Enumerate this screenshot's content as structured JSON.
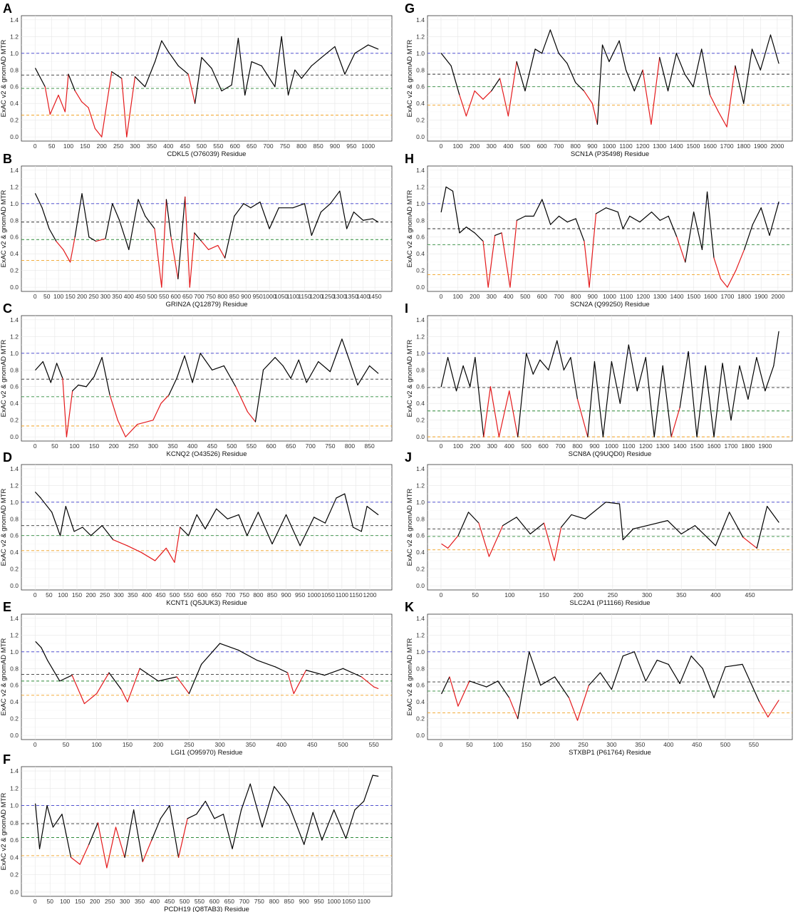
{
  "figure": {
    "ylabel": "ExAC v2 & gnomAD MTR",
    "yticks": [
      0.0,
      0.2,
      0.4,
      0.6,
      0.8,
      1.0,
      1.2,
      1.4
    ],
    "colors": {
      "line_tolerant": "#000000",
      "line_intolerant": "#e41a1c",
      "gray_series": "#b5b5b5",
      "ref_blue": "#3b3bcc",
      "ref_black": "#333333",
      "ref_green": "#2e8b3a",
      "ref_orange": "#f0a020"
    }
  },
  "chart_data": [
    {
      "panel": "A",
      "type": "line",
      "xlabel": "CDKL5 (O76039) Residue",
      "xmax": 1030,
      "xtick_step": 50,
      "ylim": [
        0,
        1.4
      ],
      "ref_lines": {
        "blue": 1.0,
        "black": 0.74,
        "green": 0.58,
        "orange": 0.26
      },
      "series": [
        {
          "x": [
            1,
            30,
            45,
            70,
            90,
            100,
            120,
            140,
            160,
            180,
            200,
            230,
            260,
            275,
            300,
            330,
            360,
            380,
            400,
            430,
            460,
            480,
            500,
            530,
            560,
            590,
            610,
            630,
            650,
            680,
            720,
            740,
            760,
            780,
            800,
            830,
            860,
            900,
            930,
            960,
            1000,
            1030
          ],
          "y": [
            0.82,
            0.6,
            0.27,
            0.5,
            0.3,
            0.75,
            0.55,
            0.42,
            0.35,
            0.1,
            0.0,
            0.78,
            0.7,
            0.0,
            0.72,
            0.6,
            0.9,
            1.15,
            1.02,
            0.85,
            0.75,
            0.4,
            0.95,
            0.82,
            0.55,
            0.62,
            1.18,
            0.5,
            0.9,
            0.85,
            0.6,
            1.2,
            0.5,
            0.8,
            0.7,
            0.85,
            0.95,
            1.08,
            0.75,
            1.0,
            1.1,
            1.05
          ]
        }
      ]
    },
    {
      "panel": "B",
      "type": "line",
      "xlabel": "GRIN2A (Q12879) Residue",
      "xmax": 1464,
      "xtick_step": 50,
      "ylim": [
        0,
        1.4
      ],
      "ref_lines": {
        "blue": 1.0,
        "black": 0.78,
        "green": 0.57,
        "orange": 0.32
      },
      "series": [
        {
          "x": [
            1,
            30,
            60,
            90,
            120,
            150,
            170,
            200,
            230,
            260,
            300,
            330,
            360,
            400,
            440,
            470,
            510,
            540,
            560,
            580,
            610,
            640,
            660,
            680,
            710,
            740,
            780,
            810,
            850,
            890,
            920,
            960,
            1000,
            1040,
            1100,
            1150,
            1180,
            1220,
            1260,
            1300,
            1330,
            1360,
            1400,
            1440,
            1464
          ],
          "y": [
            1.12,
            0.95,
            0.7,
            0.55,
            0.45,
            0.3,
            0.6,
            1.12,
            0.6,
            0.55,
            0.58,
            1.0,
            0.8,
            0.45,
            1.05,
            0.85,
            0.7,
            0.0,
            1.05,
            0.6,
            0.1,
            1.08,
            0.0,
            0.65,
            0.55,
            0.45,
            0.5,
            0.35,
            0.85,
            1.0,
            0.95,
            1.02,
            0.7,
            0.95,
            0.95,
            1.0,
            0.62,
            0.9,
            1.0,
            1.15,
            0.7,
            0.9,
            0.8,
            0.82,
            0.78
          ]
        }
      ]
    },
    {
      "panel": "C",
      "type": "line",
      "xlabel": "KCNQ2 (O43526) Residue",
      "xmax": 872,
      "xtick_step": 50,
      "ylim": [
        0,
        1.4
      ],
      "ref_lines": {
        "blue": 1.0,
        "black": 0.69,
        "green": 0.48,
        "orange": 0.13
      },
      "series": [
        {
          "x": [
            1,
            20,
            40,
            55,
            70,
            80,
            95,
            110,
            130,
            150,
            170,
            190,
            210,
            230,
            260,
            300,
            320,
            340,
            360,
            380,
            400,
            420,
            450,
            480,
            510,
            540,
            560,
            580,
            610,
            630,
            650,
            670,
            690,
            720,
            750,
            780,
            800,
            820,
            850,
            872
          ],
          "y": [
            0.8,
            0.9,
            0.65,
            0.88,
            0.7,
            0.0,
            0.55,
            0.62,
            0.6,
            0.72,
            0.95,
            0.5,
            0.2,
            0.0,
            0.15,
            0.2,
            0.4,
            0.5,
            0.7,
            0.97,
            0.65,
            1.0,
            0.8,
            0.85,
            0.6,
            0.3,
            0.18,
            0.8,
            0.95,
            0.85,
            0.7,
            0.92,
            0.65,
            0.9,
            0.78,
            1.17,
            0.9,
            0.62,
            0.85,
            0.76
          ]
        }
      ]
    },
    {
      "panel": "D",
      "type": "line",
      "xlabel": "KCNT1 (Q5JUK3) Residue",
      "xmax": 1230,
      "xtick_step": 50,
      "ylim": [
        0,
        1.4
      ],
      "ref_lines": {
        "blue": 1.0,
        "black": 0.72,
        "green": 0.6,
        "orange": 0.42
      },
      "series": [
        {
          "x": [
            1,
            20,
            60,
            90,
            110,
            140,
            170,
            200,
            240,
            280,
            330,
            380,
            430,
            470,
            500,
            520,
            550,
            580,
            610,
            650,
            690,
            730,
            760,
            800,
            850,
            900,
            950,
            1000,
            1040,
            1080,
            1110,
            1140,
            1170,
            1190,
            1230
          ],
          "y": [
            1.12,
            1.05,
            0.88,
            0.6,
            0.95,
            0.65,
            0.7,
            0.6,
            0.72,
            0.55,
            0.48,
            0.4,
            0.3,
            0.45,
            0.28,
            0.7,
            0.6,
            0.85,
            0.68,
            0.92,
            0.8,
            0.85,
            0.6,
            0.88,
            0.5,
            0.85,
            0.48,
            0.82,
            0.75,
            1.05,
            1.1,
            0.7,
            0.65,
            0.95,
            0.85
          ]
        }
      ]
    },
    {
      "panel": "E",
      "type": "line",
      "xlabel": "LGI1 (O95970) Residue",
      "xmax": 557,
      "xtick_step": 50,
      "ylim": [
        0,
        1.4
      ],
      "ref_lines": {
        "blue": 1.0,
        "black": 0.73,
        "green": 0.65,
        "orange": 0.48
      },
      "series": [
        {
          "x": [
            1,
            10,
            20,
            40,
            60,
            80,
            100,
            120,
            140,
            150,
            170,
            200,
            230,
            250,
            270,
            300,
            330,
            360,
            390,
            410,
            420,
            440,
            470,
            500,
            530,
            550,
            557
          ],
          "y": [
            1.12,
            1.05,
            0.9,
            0.65,
            0.72,
            0.38,
            0.5,
            0.75,
            0.55,
            0.4,
            0.8,
            0.65,
            0.7,
            0.5,
            0.85,
            1.1,
            1.02,
            0.9,
            0.82,
            0.75,
            0.5,
            0.78,
            0.72,
            0.8,
            0.7,
            0.58,
            0.56
          ]
        }
      ]
    },
    {
      "panel": "F",
      "type": "line",
      "xlabel": "PCDH19 (Q8TAB3) Residue",
      "xmax": 1148,
      "xtick_step": 50,
      "ylim": [
        0,
        1.4
      ],
      "ref_lines": {
        "blue": 1.0,
        "black": 0.79,
        "green": 0.63,
        "orange": 0.42
      },
      "series": [
        {
          "x": [
            1,
            15,
            40,
            60,
            90,
            120,
            150,
            180,
            210,
            240,
            270,
            300,
            330,
            360,
            390,
            420,
            450,
            480,
            510,
            540,
            570,
            600,
            630,
            660,
            690,
            720,
            760,
            800,
            850,
            900,
            930,
            960,
            1000,
            1040,
            1070,
            1100,
            1130,
            1148
          ],
          "y": [
            1.02,
            0.5,
            1.0,
            0.75,
            0.9,
            0.4,
            0.32,
            0.55,
            0.8,
            0.28,
            0.75,
            0.4,
            0.95,
            0.35,
            0.6,
            0.85,
            1.0,
            0.4,
            0.85,
            0.9,
            1.05,
            0.85,
            0.9,
            0.5,
            0.95,
            1.25,
            0.75,
            1.22,
            1.0,
            0.55,
            0.92,
            0.6,
            0.95,
            0.62,
            0.95,
            1.05,
            1.35,
            1.34
          ]
        }
      ]
    },
    {
      "panel": "G",
      "type": "line",
      "xlabel": "SCN1A (P35498) Residue",
      "xmax": 2009,
      "xtick_step": 100,
      "ylim": [
        0,
        1.4
      ],
      "ref_lines": {
        "blue": 1.0,
        "black": 0.75,
        "green": 0.6,
        "orange": 0.38
      },
      "series": [
        {
          "x": [
            1,
            60,
            110,
            150,
            200,
            250,
            300,
            350,
            400,
            450,
            500,
            560,
            600,
            650,
            700,
            750,
            800,
            850,
            900,
            930,
            960,
            1000,
            1060,
            1100,
            1150,
            1200,
            1250,
            1300,
            1350,
            1400,
            1450,
            1500,
            1550,
            1600,
            1650,
            1700,
            1750,
            1800,
            1850,
            1900,
            1960,
            2009
          ],
          "y": [
            1.0,
            0.85,
            0.5,
            0.25,
            0.55,
            0.45,
            0.55,
            0.7,
            0.25,
            0.9,
            0.55,
            1.05,
            1.0,
            1.28,
            1.0,
            0.88,
            0.65,
            0.55,
            0.4,
            0.15,
            1.1,
            0.9,
            1.15,
            0.8,
            0.55,
            0.8,
            0.15,
            0.95,
            0.55,
            1.0,
            0.75,
            0.6,
            1.05,
            0.5,
            0.3,
            0.12,
            0.85,
            0.4,
            1.05,
            0.8,
            1.22,
            0.88
          ]
        }
      ]
    },
    {
      "panel": "H",
      "type": "line",
      "xlabel": "SCN2A (Q99250) Residue",
      "xmax": 2005,
      "xtick_step": 100,
      "ylim": [
        0,
        1.4
      ],
      "ref_lines": {
        "blue": 1.0,
        "black": 0.7,
        "green": 0.51,
        "orange": 0.15
      },
      "series": [
        {
          "x": [
            1,
            30,
            70,
            110,
            150,
            200,
            250,
            280,
            320,
            360,
            410,
            450,
            500,
            550,
            600,
            650,
            700,
            750,
            800,
            850,
            880,
            920,
            980,
            1050,
            1080,
            1120,
            1180,
            1250,
            1300,
            1350,
            1400,
            1450,
            1500,
            1550,
            1580,
            1620,
            1660,
            1700,
            1750,
            1800,
            1850,
            1900,
            1950,
            2005
          ],
          "y": [
            0.9,
            1.2,
            1.15,
            0.65,
            0.72,
            0.65,
            0.55,
            0.0,
            0.62,
            0.65,
            0.0,
            0.8,
            0.85,
            0.85,
            1.05,
            0.75,
            0.85,
            0.78,
            0.82,
            0.55,
            0.0,
            0.88,
            0.95,
            0.9,
            0.7,
            0.85,
            0.78,
            0.9,
            0.8,
            0.85,
            0.6,
            0.3,
            0.9,
            0.45,
            1.14,
            0.35,
            0.1,
            0.0,
            0.2,
            0.45,
            0.75,
            0.95,
            0.62,
            1.02
          ]
        }
      ]
    },
    {
      "panel": "I",
      "type": "line",
      "xlabel": "SCN8A (Q9UQD0) Residue",
      "xmax": 1980,
      "xtick_step": 100,
      "ylim": [
        0,
        1.4
      ],
      "ref_lines": {
        "blue": 1.0,
        "black": 0.59,
        "green": 0.31,
        "orange": 0.0
      },
      "series": [
        {
          "x": [
            1,
            40,
            90,
            130,
            170,
            200,
            250,
            290,
            340,
            400,
            450,
            500,
            540,
            580,
            630,
            680,
            720,
            760,
            800,
            860,
            900,
            950,
            1000,
            1050,
            1100,
            1150,
            1200,
            1250,
            1300,
            1350,
            1400,
            1450,
            1500,
            1550,
            1600,
            1650,
            1700,
            1750,
            1800,
            1850,
            1900,
            1950,
            1980
          ],
          "y": [
            0.6,
            0.95,
            0.55,
            0.85,
            0.6,
            0.95,
            0.0,
            0.6,
            0.0,
            0.55,
            0.0,
            1.0,
            0.75,
            0.92,
            0.8,
            1.15,
            0.8,
            0.95,
            0.45,
            0.0,
            0.9,
            0.0,
            0.9,
            0.4,
            1.1,
            0.55,
            0.95,
            0.0,
            0.85,
            0.0,
            0.35,
            1.02,
            0.0,
            0.85,
            0.0,
            0.88,
            0.2,
            0.85,
            0.45,
            0.95,
            0.55,
            0.85,
            1.26
          ]
        }
      ]
    },
    {
      "panel": "J",
      "type": "line",
      "xlabel": "SLC2A1 (P11166) Residue",
      "xmax": 492,
      "xtick_step": 50,
      "ylim": [
        0,
        1.4
      ],
      "ref_lines": {
        "blue": 1.0,
        "black": 0.68,
        "green": 0.59,
        "orange": 0.43
      },
      "series": [
        {
          "x": [
            1,
            10,
            25,
            40,
            55,
            70,
            90,
            110,
            130,
            150,
            165,
            175,
            190,
            210,
            240,
            260,
            265,
            280,
            300,
            330,
            350,
            370,
            400,
            420,
            440,
            460,
            475,
            492
          ],
          "y": [
            0.5,
            0.45,
            0.6,
            0.88,
            0.75,
            0.35,
            0.72,
            0.82,
            0.62,
            0.75,
            0.3,
            0.7,
            0.85,
            0.8,
            1.0,
            0.98,
            0.55,
            0.68,
            0.72,
            0.78,
            0.62,
            0.72,
            0.48,
            0.88,
            0.58,
            0.45,
            0.95,
            0.76
          ]
        }
      ]
    },
    {
      "panel": "K",
      "type": "line",
      "xlabel": "STXBP1 (P61764) Residue",
      "xmax": 594,
      "xtick_step": 50,
      "ylim": [
        0,
        1.4
      ],
      "ref_lines": {
        "blue": 1.0,
        "black": 0.64,
        "green": 0.53,
        "orange": 0.27
      },
      "series": [
        {
          "x": [
            1,
            15,
            30,
            50,
            80,
            100,
            120,
            135,
            155,
            175,
            200,
            225,
            240,
            260,
            280,
            300,
            320,
            340,
            360,
            380,
            400,
            420,
            440,
            460,
            480,
            500,
            530,
            560,
            575,
            594
          ],
          "y": [
            0.5,
            0.7,
            0.35,
            0.65,
            0.58,
            0.65,
            0.45,
            0.2,
            1.0,
            0.6,
            0.7,
            0.45,
            0.18,
            0.6,
            0.75,
            0.55,
            0.95,
            1.0,
            0.65,
            0.9,
            0.85,
            0.62,
            0.95,
            0.8,
            0.45,
            0.82,
            0.85,
            0.4,
            0.22,
            0.42
          ]
        }
      ]
    }
  ]
}
